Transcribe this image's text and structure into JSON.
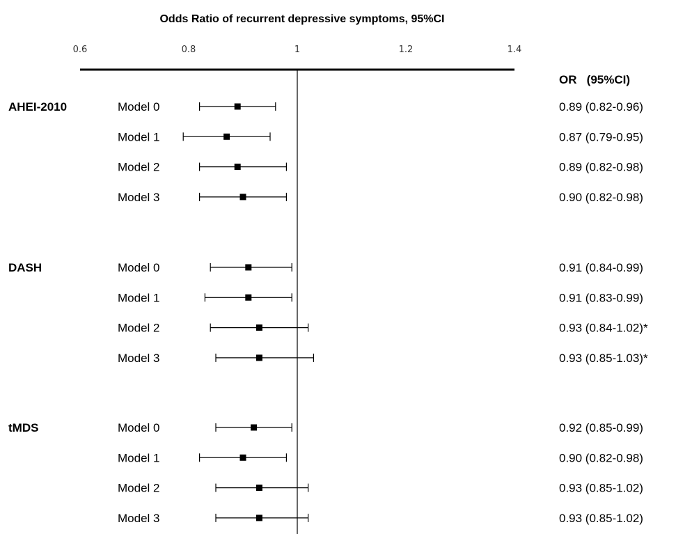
{
  "chart_data": {
    "type": "forest",
    "title": "Odds Ratio of recurrent depressive symptoms, 95%CI",
    "xlim": [
      0.6,
      1.4
    ],
    "xticks": [
      "0.6",
      "0.8",
      "1",
      "1.2",
      "1.4"
    ],
    "reference_line": 1,
    "or_header": "OR   (95%CI)",
    "groups": [
      {
        "name": "AHEI-2010",
        "rows": [
          {
            "label": "Model 0",
            "or": 0.89,
            "lo": 0.82,
            "hi": 0.96,
            "text": "0.89 (0.82-0.96)"
          },
          {
            "label": "Model 1",
            "or": 0.87,
            "lo": 0.79,
            "hi": 0.95,
            "text": "0.87 (0.79-0.95)"
          },
          {
            "label": "Model 2",
            "or": 0.89,
            "lo": 0.82,
            "hi": 0.98,
            "text": "0.89 (0.82-0.98)"
          },
          {
            "label": "Model 3",
            "or": 0.9,
            "lo": 0.82,
            "hi": 0.98,
            "text": "0.90 (0.82-0.98)"
          }
        ]
      },
      {
        "name": "DASH",
        "rows": [
          {
            "label": "Model 0",
            "or": 0.91,
            "lo": 0.84,
            "hi": 0.99,
            "text": "0.91 (0.84-0.99)"
          },
          {
            "label": "Model 1",
            "or": 0.91,
            "lo": 0.83,
            "hi": 0.99,
            "text": "0.91 (0.83-0.99)"
          },
          {
            "label": "Model 2",
            "or": 0.93,
            "lo": 0.84,
            "hi": 1.02,
            "text": "0.93 (0.84-1.02)*"
          },
          {
            "label": "Model 3",
            "or": 0.93,
            "lo": 0.85,
            "hi": 1.03,
            "text": "0.93 (0.85-1.03)*"
          }
        ]
      },
      {
        "name": "tMDS",
        "rows": [
          {
            "label": "Model 0",
            "or": 0.92,
            "lo": 0.85,
            "hi": 0.99,
            "text": "0.92 (0.85-0.99)"
          },
          {
            "label": "Model 1",
            "or": 0.9,
            "lo": 0.82,
            "hi": 0.98,
            "text": "0.90 (0.82-0.98)"
          },
          {
            "label": "Model 2",
            "or": 0.93,
            "lo": 0.85,
            "hi": 1.02,
            "text": "0.93 (0.85-1.02)"
          },
          {
            "label": "Model 3",
            "or": 0.93,
            "lo": 0.85,
            "hi": 1.02,
            "text": "0.93 (0.85-1.02)"
          }
        ]
      }
    ]
  }
}
